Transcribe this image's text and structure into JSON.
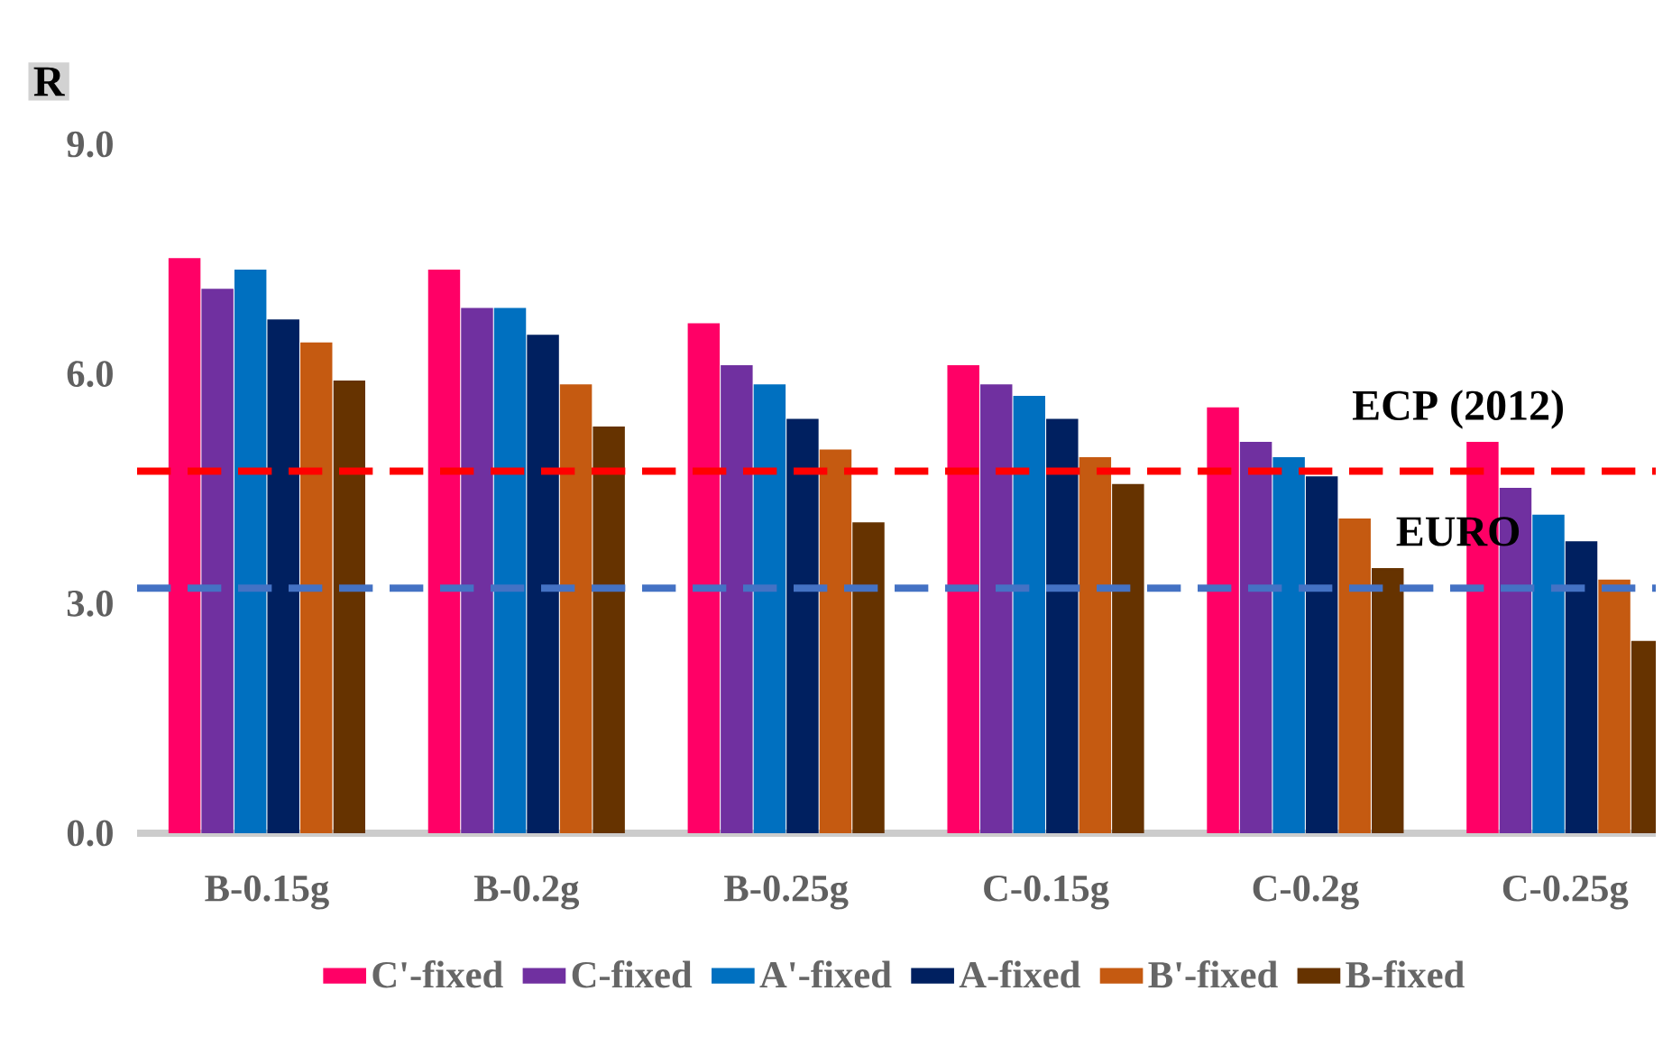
{
  "chart_data": {
    "type": "bar",
    "ylabel": "R",
    "categories": [
      "B-0.15g",
      "B-0.2g",
      "B-0.25g",
      "C-0.15g",
      "C-0.2g",
      "C-0.25g"
    ],
    "series": [
      {
        "name": "C'-fixed",
        "color": "#ff0066",
        "values": [
          7.5,
          7.35,
          6.65,
          6.1,
          5.55,
          5.1
        ]
      },
      {
        "name": "C-fixed",
        "color": "#7030a0",
        "values": [
          7.1,
          6.85,
          6.1,
          5.85,
          5.1,
          4.5
        ]
      },
      {
        "name": "A'-fixed",
        "color": "#0070c0",
        "values": [
          7.35,
          6.85,
          5.85,
          5.7,
          4.9,
          4.15
        ]
      },
      {
        "name": "A-fixed",
        "color": "#002060",
        "values": [
          6.7,
          6.5,
          5.4,
          5.4,
          4.65,
          3.8
        ]
      },
      {
        "name": "B'-fixed",
        "color": "#c55a11",
        "values": [
          6.4,
          5.85,
          5.0,
          4.9,
          4.1,
          3.3
        ]
      },
      {
        "name": "B-fixed",
        "color": "#663300",
        "values": [
          5.9,
          5.3,
          4.05,
          4.55,
          3.45,
          2.5
        ]
      }
    ],
    "ylim": [
      0,
      9
    ],
    "yticks": [
      {
        "value": 0,
        "label": "0.0"
      },
      {
        "value": 3,
        "label": "3.0"
      },
      {
        "value": 6,
        "label": "6.0"
      },
      {
        "value": 9,
        "label": "9.0"
      }
    ],
    "ref_lines": [
      {
        "axis": "y",
        "value": 4.73,
        "label": "ECP (2012)",
        "color": "#ff0000",
        "line_style": "dashed"
      },
      {
        "axis": "y",
        "value": 3.2,
        "label": "EURO",
        "color": "#4472c4",
        "line_style": "dashed"
      }
    ],
    "grid": false,
    "legend": "bottom"
  }
}
